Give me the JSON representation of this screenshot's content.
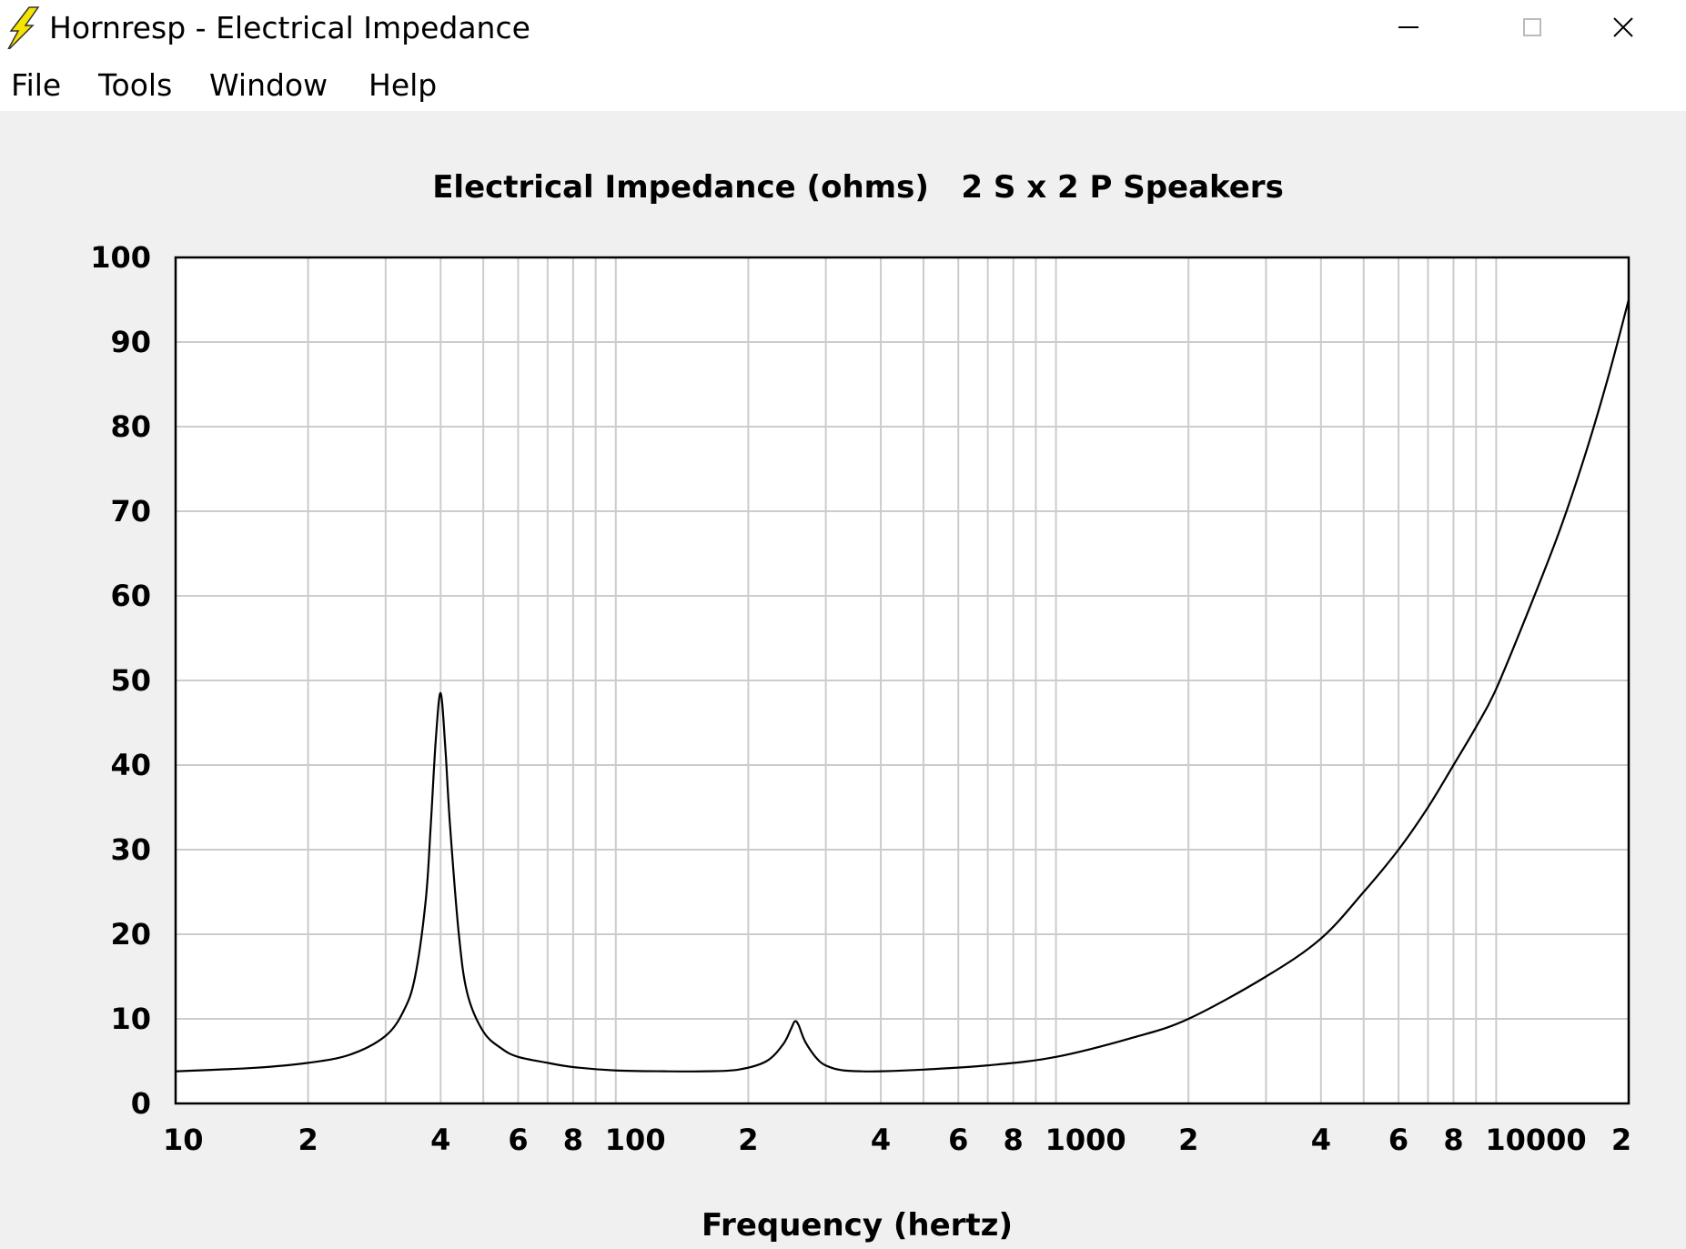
{
  "window": {
    "title": "Hornresp - Electrical Impedance",
    "icon": "lightning-bolt-icon",
    "controls": {
      "minimize": "minimize-icon",
      "maximize": "maximize-icon",
      "close": "close-icon"
    }
  },
  "menu": {
    "items": [
      {
        "label": "File"
      },
      {
        "label": "Tools"
      },
      {
        "label": "Window"
      },
      {
        "label": "Help"
      }
    ]
  },
  "chart_data": {
    "type": "line",
    "title": "Electrical Impedance (ohms)   2 S x 2 P Speakers",
    "xlabel": "Frequency (hertz)",
    "ylabel": "",
    "xscale": "log",
    "xlim": [
      10,
      20000
    ],
    "ylim": [
      0,
      100
    ],
    "grid": true,
    "x_tick_labels": [
      "10",
      "2",
      "4",
      "6",
      "8",
      "100",
      "2",
      "4",
      "6",
      "8",
      "1000",
      "2",
      "4",
      "6",
      "8",
      "10000",
      "2"
    ],
    "y_tick_labels": [
      "0",
      "10",
      "20",
      "30",
      "40",
      "50",
      "60",
      "70",
      "80",
      "90",
      "100"
    ],
    "series": [
      {
        "color": "#000000",
        "x": [
          10,
          15,
          20,
          25,
          30,
          33,
          35,
          37,
          38,
          39,
          40,
          41,
          42,
          44,
          46,
          50,
          55,
          60,
          70,
          80,
          100,
          130,
          160,
          190,
          220,
          240,
          250,
          255,
          260,
          270,
          290,
          310,
          330,
          360,
          400,
          500,
          700,
          1000,
          1500,
          2000,
          3000,
          4000,
          5000,
          6000,
          7000,
          8000,
          9000,
          10000,
          12000,
          14000,
          16000,
          18000,
          20000
        ],
        "y": [
          3.8,
          4.2,
          4.8,
          5.8,
          8.0,
          11.0,
          15.0,
          24.0,
          33.0,
          43.0,
          48.5,
          42.0,
          33.0,
          20.0,
          13.0,
          8.5,
          6.5,
          5.5,
          4.8,
          4.3,
          3.9,
          3.8,
          3.8,
          4.0,
          5.0,
          7.0,
          8.8,
          9.7,
          9.3,
          7.2,
          5.0,
          4.2,
          3.9,
          3.8,
          3.8,
          4.0,
          4.5,
          5.5,
          7.8,
          10.0,
          15.0,
          19.5,
          25.0,
          30.0,
          35.0,
          40.0,
          44.5,
          49.0,
          59.0,
          68.0,
          77.0,
          86.0,
          95.0
        ]
      }
    ]
  }
}
